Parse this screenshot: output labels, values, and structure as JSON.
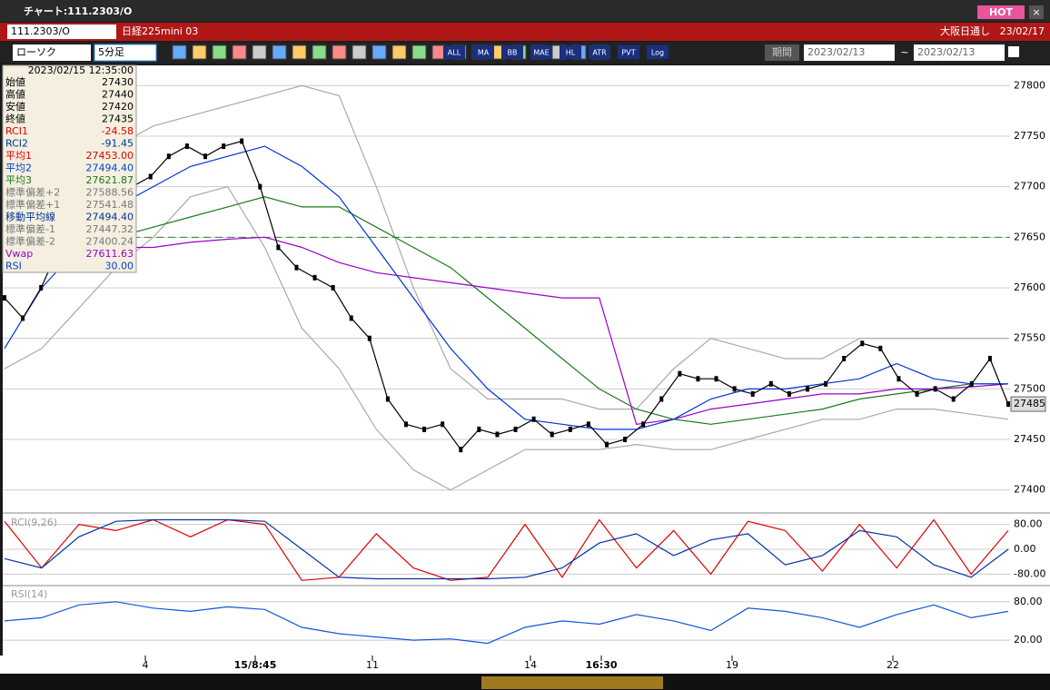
{
  "window": {
    "title": "チャート:111.2303/O",
    "hot": "HOT",
    "close": "×"
  },
  "header": {
    "symbol": "111.2303/O",
    "name": "日経225mini 03",
    "session": "大阪日通し",
    "date": "23/02/17"
  },
  "toolbar": {
    "chart_type": "ローソク",
    "interval": "5分足",
    "icon_labels": [
      "ALL",
      "MA",
      "BB",
      "MAE",
      "HL",
      "ATR",
      "PVT",
      "Log"
    ],
    "period": "期間",
    "from": "2023/02/13",
    "sep": "~",
    "to": "2023/02/13"
  },
  "info": {
    "datetime": "2023/02/15  12:35:00",
    "rows": [
      {
        "label": "始値",
        "value": "27430",
        "color": "#000"
      },
      {
        "label": "高値",
        "value": "27440",
        "color": "#000"
      },
      {
        "label": "安値",
        "value": "27420",
        "color": "#000"
      },
      {
        "label": "終値",
        "value": "27435",
        "color": "#000"
      },
      {
        "label": "RCI1",
        "value": "-24.58",
        "color": "#d00"
      },
      {
        "label": "RCI2",
        "value": "-91.45",
        "color": "#003399"
      },
      {
        "label": "平均1",
        "value": "27453.00",
        "color": "#d00"
      },
      {
        "label": "平均2",
        "value": "27494.40",
        "color": "#0044cc"
      },
      {
        "label": "平均3",
        "value": "27621.87",
        "color": "#1a7a1a"
      },
      {
        "label": "標準偏差+2",
        "value": "27588.56",
        "color": "#777"
      },
      {
        "label": "標準偏差+1",
        "value": "27541.48",
        "color": "#777"
      },
      {
        "label": "移動平均線",
        "value": "27494.40",
        "color": "#003399"
      },
      {
        "label": "標準偏差-1",
        "value": "27447.32",
        "color": "#777"
      },
      {
        "label": "標準偏差-2",
        "value": "27400.24",
        "color": "#777"
      },
      {
        "label": "Vwap",
        "value": "27611.63",
        "color": "#9900cc"
      },
      {
        "label": "RSI",
        "value": "30.00",
        "color": "#0044cc"
      }
    ]
  },
  "price_chart": {
    "ylim": [
      27380,
      27820
    ],
    "yticks": [
      27400,
      27450,
      27500,
      27550,
      27600,
      27650,
      27700,
      27750,
      27800
    ],
    "hline": 27650,
    "last": 27485,
    "close": [
      27590,
      27570,
      27600,
      27640,
      27660,
      27680,
      27690,
      27700,
      27710,
      27730,
      27740,
      27730,
      27740,
      27745,
      27700,
      27640,
      27620,
      27610,
      27600,
      27570,
      27550,
      27490,
      27465,
      27460,
      27465,
      27440,
      27460,
      27455,
      27460,
      27470,
      27455,
      27460,
      27465,
      27445,
      27450,
      27465,
      27490,
      27515,
      27510,
      27510,
      27500,
      27495,
      27505,
      27495,
      27500,
      27505,
      27530,
      27545,
      27540,
      27510,
      27495,
      27500,
      27490,
      27505,
      27530,
      27485
    ],
    "series": [
      {
        "color": "#aaa",
        "values": [
          27640,
          27620,
          27700,
          27740,
          27760,
          27770,
          27780,
          27790,
          27800,
          27790,
          27700,
          27600,
          27520,
          27490,
          27490,
          27490,
          27480,
          27480,
          27520,
          27550,
          27540,
          27530,
          27530,
          27550,
          27550,
          27550,
          27550,
          27550
        ]
      },
      {
        "color": "#aaa",
        "values": [
          27520,
          27540,
          27580,
          27620,
          27650,
          27690,
          27700,
          27640,
          27560,
          27520,
          27460,
          27420,
          27400,
          27420,
          27440,
          27440,
          27440,
          27445,
          27440,
          27440,
          27450,
          27460,
          27470,
          27470,
          27480,
          27480,
          27475,
          27470
        ]
      },
      {
        "color": "#1a7a1a",
        "values": [
          27620,
          27630,
          27640,
          27650,
          27660,
          27670,
          27680,
          27690,
          27680,
          27680,
          27660,
          27640,
          27620,
          27590,
          27560,
          27530,
          27500,
          27480,
          27470,
          27465,
          27470,
          27475,
          27480,
          27490,
          27495,
          27500,
          27505,
          27505
        ]
      },
      {
        "color": "#9900cc",
        "values": [
          27630,
          27635,
          27640,
          27640,
          27640,
          27645,
          27648,
          27650,
          27640,
          27625,
          27615,
          27610,
          27605,
          27600,
          27595,
          27590,
          27590,
          27465,
          27470,
          27480,
          27485,
          27490,
          27495,
          27495,
          27500,
          27500,
          27502,
          27505
        ]
      },
      {
        "color": "#0033dd",
        "values": [
          27540,
          27600,
          27640,
          27680,
          27700,
          27720,
          27730,
          27740,
          27720,
          27690,
          27640,
          27590,
          27540,
          27500,
          27470,
          27465,
          27460,
          27460,
          27470,
          27490,
          27500,
          27500,
          27505,
          27510,
          27525,
          27510,
          27505,
          27505
        ]
      }
    ]
  },
  "rci": {
    "title": "RCI(9,26)",
    "ylim": [
      -108,
      108
    ],
    "yticks": [
      {
        "value": 80,
        "label": "80.00"
      },
      {
        "value": 0,
        "label": "0.00"
      },
      {
        "value": -80,
        "label": "-80.00"
      }
    ],
    "series": [
      {
        "color": "#d00",
        "values": [
          90,
          -60,
          80,
          60,
          95,
          40,
          95,
          80,
          -100,
          -90,
          50,
          -60,
          -100,
          -90,
          80,
          -90,
          95,
          -60,
          60,
          -80,
          90,
          60,
          -70,
          80,
          -60,
          95,
          -80,
          60
        ]
      },
      {
        "color": "#0033aa",
        "values": [
          -30,
          -60,
          40,
          90,
          95,
          95,
          95,
          90,
          0,
          -90,
          -95,
          -95,
          -95,
          -95,
          -90,
          -60,
          20,
          50,
          -20,
          30,
          50,
          -50,
          -20,
          60,
          40,
          -50,
          -90,
          0
        ]
      }
    ]
  },
  "rsi": {
    "title": "RSI(14)",
    "ylim": [
      -4,
      101
    ],
    "yticks": [
      {
        "value": 80,
        "label": "80.00"
      },
      {
        "value": 20,
        "label": "20.00"
      }
    ],
    "color": "#1155dd",
    "values": [
      50,
      55,
      75,
      80,
      70,
      65,
      72,
      68,
      40,
      30,
      25,
      20,
      22,
      15,
      40,
      50,
      45,
      60,
      50,
      35,
      70,
      65,
      55,
      40,
      60,
      75,
      55,
      65
    ]
  },
  "xaxis": [
    "4",
    "15/8:45",
    "11",
    "14",
    "16:30",
    "19",
    "22"
  ]
}
